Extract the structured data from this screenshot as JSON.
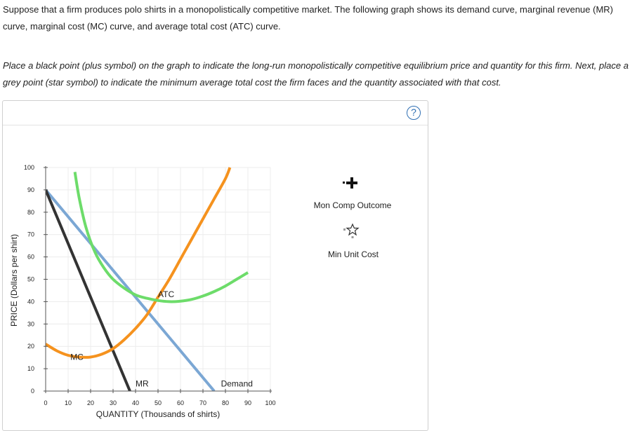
{
  "question": {
    "intro": "Suppose that a firm produces polo shirts in a monopolistically competitive market. The following graph shows its demand curve, marginal revenue (MR) curve, marginal cost (MC) curve, and average total cost (ATC) curve.",
    "instructions": "Place a black point (plus symbol) on the graph to indicate the long-run monopolistically competitive equilibrium price and quantity for this firm. Next, place a grey point (star symbol) to indicate the minimum average total cost the firm faces and the quantity associated with that cost."
  },
  "help_label": "?",
  "tools": [
    {
      "label": "Mon Comp Outcome",
      "symbol": "plus",
      "color": "#111111"
    },
    {
      "label": "Min Unit Cost",
      "symbol": "star",
      "color": "#888888"
    }
  ],
  "chart_data": {
    "type": "line",
    "xlabel": "QUANTITY (Thousands of shirts)",
    "ylabel": "PRICE (Dollars per shirt)",
    "xlim": [
      0,
      100
    ],
    "ylim": [
      0,
      100
    ],
    "x_ticks": [
      0,
      10,
      20,
      30,
      40,
      50,
      60,
      70,
      80,
      90,
      100
    ],
    "y_ticks": [
      0,
      10,
      20,
      30,
      40,
      50,
      60,
      70,
      80,
      90,
      100
    ],
    "grid": true,
    "series": [
      {
        "name": "Demand",
        "color": "#7ba7d4",
        "points": [
          [
            0,
            90
          ],
          [
            75,
            0
          ]
        ]
      },
      {
        "name": "MR",
        "color": "#333333",
        "points": [
          [
            0,
            90
          ],
          [
            37.5,
            0
          ]
        ]
      },
      {
        "name": "MC",
        "color": "#f5921e",
        "points": [
          [
            0,
            21
          ],
          [
            5,
            18
          ],
          [
            10,
            16
          ],
          [
            15,
            15.2
          ],
          [
            20,
            15.2
          ],
          [
            25,
            16.5
          ],
          [
            30,
            19
          ],
          [
            35,
            23
          ],
          [
            40,
            28
          ],
          [
            45,
            34
          ],
          [
            50,
            42
          ],
          [
            55,
            50
          ],
          [
            60,
            59
          ],
          [
            65,
            68
          ],
          [
            70,
            77
          ],
          [
            75,
            86
          ],
          [
            80,
            95
          ],
          [
            82,
            100
          ]
        ]
      },
      {
        "name": "ATC",
        "color": "#6ddc6a",
        "points": [
          [
            13,
            98
          ],
          [
            15,
            86
          ],
          [
            18,
            73
          ],
          [
            22,
            62
          ],
          [
            26,
            55
          ],
          [
            30,
            50
          ],
          [
            35,
            46
          ],
          [
            40,
            43
          ],
          [
            45,
            41.5
          ],
          [
            50,
            40.5
          ],
          [
            55,
            40
          ],
          [
            60,
            40.2
          ],
          [
            65,
            41
          ],
          [
            70,
            42.5
          ],
          [
            75,
            44.5
          ],
          [
            80,
            47
          ],
          [
            85,
            50
          ],
          [
            90,
            53
          ]
        ]
      }
    ],
    "annotations": [
      {
        "text": "ATC",
        "x": 50,
        "y": 42
      },
      {
        "text": "MC",
        "x": 11,
        "y": 14
      },
      {
        "text": "MR",
        "x": 40,
        "y": 2
      },
      {
        "text": "Demand",
        "x": 78,
        "y": 2
      }
    ]
  }
}
